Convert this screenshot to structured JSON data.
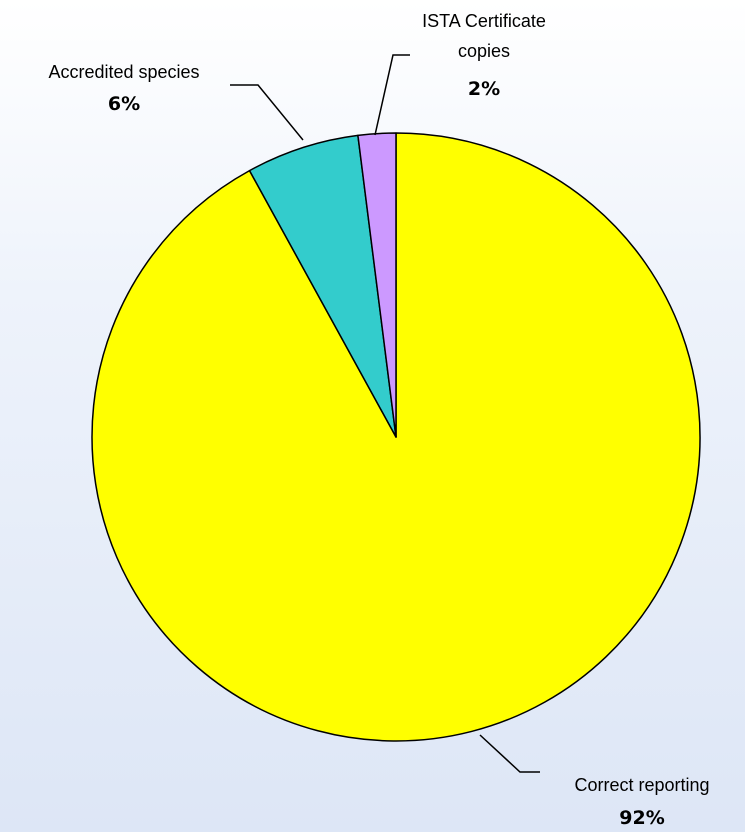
{
  "chart_data": {
    "type": "pie",
    "start": "12 o'clock, clockwise",
    "slices": [
      {
        "label": "Correct reporting",
        "value": 92,
        "value_label": "92%",
        "color": "#ffff00"
      },
      {
        "label": "Accredited species",
        "value": 6,
        "value_label": "6%",
        "color": "#33cccc"
      },
      {
        "label_lines": [
          "ISTA Certificate",
          "copies"
        ],
        "label": "ISTA Certificate copies",
        "value": 2,
        "value_label": "2%",
        "color": "#cc99ff"
      }
    ],
    "slice_border_color": "#000000",
    "leader_line_color": "#000000"
  }
}
